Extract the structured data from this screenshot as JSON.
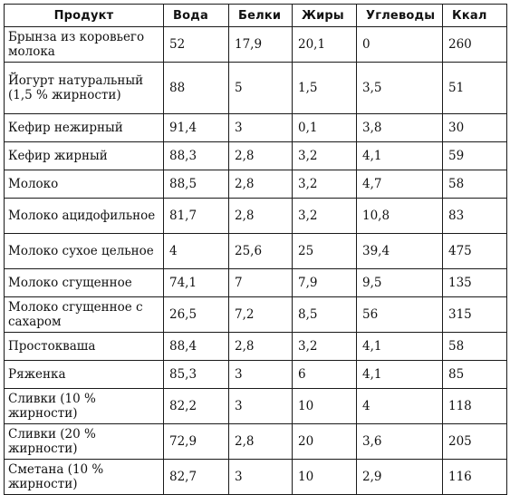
{
  "table": {
    "headers": [
      "Продукт",
      "Вода",
      "Белки",
      "Жиры",
      "Углеводы",
      "Ккал"
    ],
    "rows": [
      {
        "name": "Брынза из коровьего молока",
        "water": "52",
        "protein": "17,9",
        "fat": "20,1",
        "carbs": "0",
        "kcal": "260"
      },
      {
        "name": "Йогурт натуральный (1,5 % жирности)",
        "water": "88",
        "protein": "5",
        "fat": "1,5",
        "carbs": "3,5",
        "kcal": "51"
      },
      {
        "name": "Кефир нежирный",
        "water": "91,4",
        "protein": "3",
        "fat": "0,1",
        "carbs": "3,8",
        "kcal": "30"
      },
      {
        "name": "Кефир жирный",
        "water": "88,3",
        "protein": "2,8",
        "fat": "3,2",
        "carbs": "4,1",
        "kcal": "59"
      },
      {
        "name": "Молоко",
        "water": "88,5",
        "protein": "2,8",
        "fat": "3,2",
        "carbs": "4,7",
        "kcal": "58"
      },
      {
        "name": "Молоко ацидофильное",
        "water": "81,7",
        "protein": "2,8",
        "fat": "3,2",
        "carbs": "10,8",
        "kcal": "83"
      },
      {
        "name": "Молоко сухое цельное",
        "water": "4",
        "protein": "25,6",
        "fat": "25",
        "carbs": "39,4",
        "kcal": "475"
      },
      {
        "name": "Молоко сгущенное",
        "water": "74,1",
        "protein": "7",
        "fat": "7,9",
        "carbs": "9,5",
        "kcal": "135"
      },
      {
        "name": "Молоко сгущенное с сахаром",
        "water": "26,5",
        "protein": "7,2",
        "fat": "8,5",
        "carbs": "56",
        "kcal": "315"
      },
      {
        "name": "Простокваша",
        "water": "88,4",
        "protein": "2,8",
        "fat": "3,2",
        "carbs": "4,1",
        "kcal": "58"
      },
      {
        "name": "Ряженка",
        "water": "85,3",
        "protein": "3",
        "fat": "6",
        "carbs": "4,1",
        "kcal": "85"
      },
      {
        "name": "Сливки (10 % жирности)",
        "water": "82,2",
        "protein": "3",
        "fat": "10",
        "carbs": "4",
        "kcal": "118"
      },
      {
        "name": "Сливки (20 % жирности)",
        "water": "72,9",
        "protein": "2,8",
        "fat": "20",
        "carbs": "3,6",
        "kcal": "205"
      },
      {
        "name": "Сметана (10 % жирности)",
        "water": "82,7",
        "protein": "3",
        "fat": "10",
        "carbs": "2,9",
        "kcal": "116"
      }
    ]
  }
}
